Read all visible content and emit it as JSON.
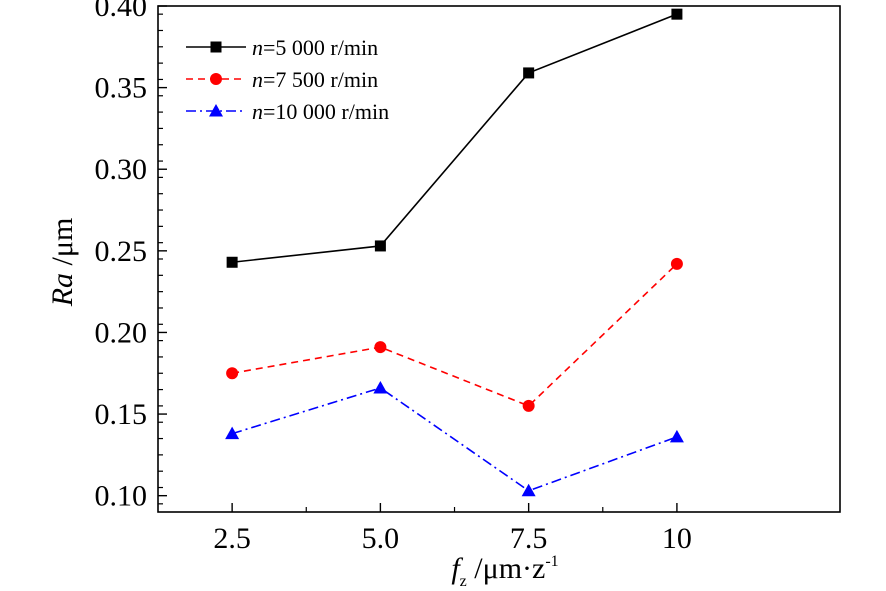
{
  "chart_data": {
    "type": "line",
    "x": [
      2.5,
      5.0,
      7.5,
      10
    ],
    "x_tick_labels": [
      "2.5",
      "5.0",
      "7.5",
      "10"
    ],
    "y_tick_labels": [
      "0.10",
      "0.15",
      "0.20",
      "0.25",
      "0.30",
      "0.35",
      "0.40"
    ],
    "ylim": [
      0.09,
      0.4
    ],
    "xlim": [
      1.25,
      12.75
    ],
    "xlabel": {
      "italic": "f",
      "subscript": "z",
      "unit": " /μm·z",
      "superscript": "-1"
    },
    "ylabel": {
      "italic": "Ra",
      "unit": " /μm"
    },
    "legend_position": "top-left",
    "grid": false,
    "series": [
      {
        "name": "n=5 000 r/min",
        "legend": {
          "italic": "n",
          "rest": "=5 000 r/min"
        },
        "values": [
          0.243,
          0.253,
          0.359,
          0.395
        ],
        "color": "#000000",
        "marker": "square",
        "line_style": "solid"
      },
      {
        "name": "n=7 500 r/min",
        "legend": {
          "italic": "n",
          "rest": "=7 500 r/min"
        },
        "values": [
          0.175,
          0.191,
          0.155,
          0.242
        ],
        "color": "#ff0000",
        "marker": "circle",
        "line_style": "dashed"
      },
      {
        "name": "n=10 000 r/min",
        "legend": {
          "italic": "n",
          "rest": "=10 000 r/min"
        },
        "values": [
          0.138,
          0.166,
          0.103,
          0.136
        ],
        "color": "#0000ff",
        "marker": "triangle",
        "line_style": "dashdot"
      }
    ]
  }
}
